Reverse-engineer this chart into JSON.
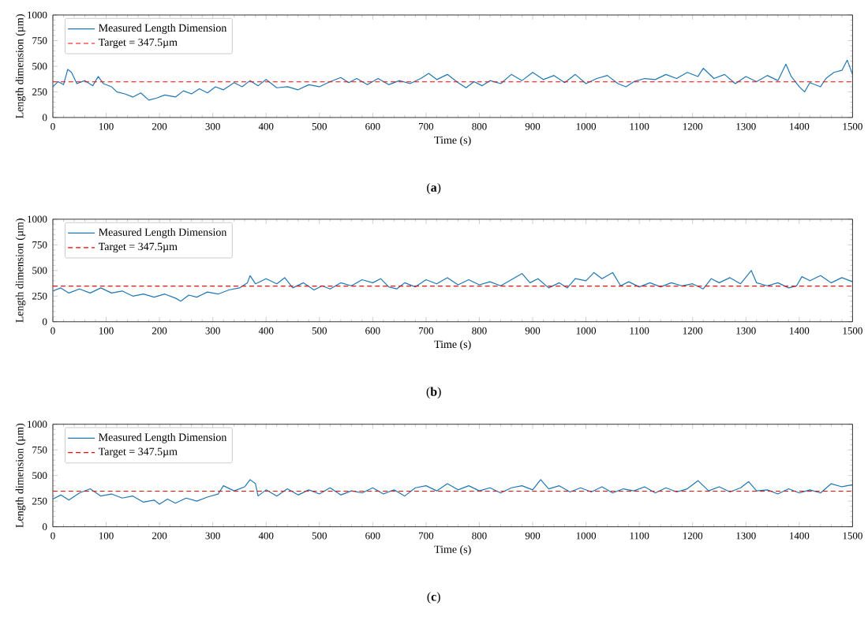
{
  "chart_data": [
    {
      "type": "line",
      "xlabel": "Time (s)",
      "ylabel": "Length dimension (µm)",
      "xlim": [
        0,
        1500
      ],
      "ylim": [
        0,
        1000
      ],
      "xticks": [
        0,
        100,
        200,
        300,
        400,
        500,
        600,
        700,
        800,
        900,
        1000,
        1100,
        1200,
        1300,
        1400,
        1500
      ],
      "yticks": [
        0,
        250,
        500,
        750,
        1000
      ],
      "legend": "top left",
      "annotations": [
        "(**a**)"
      ],
      "series": [
        {
          "name": "Measured Length Dimension",
          "color": "#1f77b4",
          "line_style": "solid",
          "x": [
            0,
            10,
            20,
            28,
            35,
            45,
            60,
            75,
            85,
            95,
            110,
            120,
            135,
            150,
            165,
            180,
            195,
            210,
            230,
            245,
            260,
            275,
            290,
            305,
            320,
            340,
            355,
            370,
            385,
            400,
            420,
            440,
            460,
            480,
            500,
            520,
            540,
            555,
            570,
            590,
            610,
            630,
            650,
            670,
            690,
            705,
            720,
            740,
            760,
            775,
            790,
            805,
            820,
            840,
            860,
            880,
            900,
            920,
            940,
            960,
            980,
            1000,
            1020,
            1040,
            1060,
            1075,
            1090,
            1110,
            1130,
            1150,
            1170,
            1190,
            1210,
            1220,
            1240,
            1260,
            1280,
            1300,
            1320,
            1340,
            1360,
            1375,
            1385,
            1400,
            1410,
            1420,
            1440,
            1450,
            1465,
            1480,
            1490,
            1500
          ],
          "values": [
            300,
            350,
            320,
            470,
            440,
            330,
            360,
            310,
            400,
            330,
            300,
            250,
            230,
            200,
            240,
            170,
            190,
            220,
            200,
            260,
            230,
            280,
            240,
            300,
            270,
            340,
            300,
            360,
            310,
            370,
            290,
            300,
            270,
            320,
            300,
            350,
            390,
            340,
            380,
            320,
            380,
            320,
            360,
            330,
            380,
            430,
            370,
            420,
            340,
            290,
            350,
            310,
            360,
            330,
            420,
            360,
            440,
            370,
            410,
            340,
            420,
            330,
            380,
            410,
            330,
            300,
            350,
            380,
            370,
            420,
            380,
            440,
            400,
            480,
            380,
            420,
            330,
            400,
            350,
            410,
            360,
            520,
            400,
            300,
            250,
            340,
            300,
            380,
            440,
            460,
            560,
            420
          ]
        },
        {
          "name": "Target = 347.5µm",
          "color": "#ff0000",
          "line_style": "dashed",
          "x": [
            0,
            1500
          ],
          "values": [
            347.5,
            347.5
          ]
        }
      ]
    },
    {
      "type": "line",
      "xlabel": "Time (s)",
      "ylabel": "Length dimension (µm)",
      "xlim": [
        0,
        1500
      ],
      "ylim": [
        0,
        1000
      ],
      "xticks": [
        0,
        100,
        200,
        300,
        400,
        500,
        600,
        700,
        800,
        900,
        1000,
        1100,
        1200,
        1300,
        1400,
        1500
      ],
      "yticks": [
        0,
        250,
        500,
        750,
        1000
      ],
      "legend": "top left",
      "annotations": [
        "(**b**)"
      ],
      "series": [
        {
          "name": "Measured Length Dimension",
          "color": "#1f77b4",
          "line_style": "solid",
          "x": [
            0,
            15,
            30,
            50,
            70,
            90,
            110,
            130,
            150,
            170,
            190,
            210,
            230,
            240,
            255,
            270,
            290,
            310,
            330,
            350,
            365,
            370,
            380,
            400,
            420,
            435,
            450,
            470,
            490,
            505,
            520,
            540,
            560,
            580,
            600,
            615,
            630,
            645,
            660,
            680,
            700,
            720,
            740,
            760,
            780,
            800,
            820,
            840,
            860,
            880,
            895,
            910,
            930,
            950,
            965,
            980,
            1000,
            1015,
            1030,
            1050,
            1065,
            1080,
            1100,
            1120,
            1140,
            1160,
            1180,
            1200,
            1220,
            1235,
            1250,
            1270,
            1290,
            1310,
            1320,
            1340,
            1360,
            1380,
            1395,
            1405,
            1420,
            1440,
            1460,
            1480,
            1500
          ],
          "values": [
            300,
            330,
            280,
            320,
            280,
            330,
            280,
            300,
            250,
            270,
            240,
            270,
            230,
            200,
            260,
            240,
            290,
            270,
            310,
            330,
            380,
            450,
            370,
            420,
            370,
            430,
            330,
            380,
            310,
            350,
            320,
            380,
            350,
            410,
            380,
            420,
            340,
            320,
            380,
            340,
            410,
            370,
            430,
            360,
            410,
            360,
            390,
            350,
            410,
            470,
            380,
            420,
            330,
            380,
            330,
            420,
            400,
            480,
            420,
            480,
            350,
            390,
            340,
            380,
            340,
            380,
            350,
            370,
            320,
            420,
            380,
            430,
            370,
            500,
            380,
            350,
            380,
            330,
            350,
            440,
            400,
            450,
            380,
            430,
            390
          ]
        },
        {
          "name": "Target = 347.5µm",
          "color": "#ff0000",
          "line_style": "dashed",
          "x": [
            0,
            1500
          ],
          "values": [
            347.5,
            347.5
          ]
        }
      ]
    },
    {
      "type": "line",
      "xlabel": "Time (s)",
      "ylabel": "Length dimension (µm)",
      "xlim": [
        0,
        1500
      ],
      "ylim": [
        0,
        1000
      ],
      "xticks": [
        0,
        100,
        200,
        300,
        400,
        500,
        600,
        700,
        800,
        900,
        1000,
        1100,
        1200,
        1300,
        1400,
        1500
      ],
      "yticks": [
        0,
        250,
        500,
        750,
        1000
      ],
      "legend": "top left",
      "annotations": [
        "(**c**)"
      ],
      "series": [
        {
          "name": "Measured Length Dimension",
          "color": "#1f77b4",
          "line_style": "solid",
          "x": [
            0,
            15,
            30,
            50,
            70,
            90,
            110,
            130,
            150,
            170,
            190,
            200,
            215,
            230,
            250,
            270,
            290,
            310,
            320,
            340,
            360,
            370,
            380,
            385,
            400,
            420,
            440,
            460,
            480,
            500,
            520,
            540,
            560,
            580,
            600,
            620,
            640,
            660,
            680,
            700,
            720,
            740,
            760,
            780,
            800,
            820,
            840,
            860,
            880,
            900,
            915,
            930,
            950,
            970,
            990,
            1010,
            1030,
            1050,
            1070,
            1090,
            1110,
            1130,
            1150,
            1170,
            1190,
            1210,
            1230,
            1250,
            1270,
            1290,
            1305,
            1320,
            1340,
            1360,
            1380,
            1400,
            1420,
            1440,
            1460,
            1480,
            1500
          ],
          "values": [
            270,
            310,
            260,
            330,
            370,
            300,
            320,
            280,
            300,
            240,
            260,
            220,
            270,
            230,
            280,
            250,
            290,
            320,
            400,
            350,
            390,
            460,
            420,
            300,
            360,
            300,
            370,
            310,
            360,
            320,
            380,
            310,
            350,
            330,
            380,
            320,
            360,
            300,
            380,
            400,
            350,
            420,
            360,
            400,
            350,
            380,
            330,
            380,
            400,
            360,
            460,
            370,
            400,
            340,
            380,
            340,
            390,
            330,
            370,
            350,
            390,
            330,
            380,
            340,
            370,
            450,
            350,
            390,
            340,
            380,
            440,
            350,
            360,
            320,
            370,
            330,
            360,
            330,
            420,
            390,
            410
          ]
        },
        {
          "name": "Target = 347.5µm",
          "color": "#ff0000",
          "line_style": "dashed",
          "x": [
            0,
            1500
          ],
          "values": [
            347.5,
            347.5
          ]
        }
      ]
    }
  ]
}
